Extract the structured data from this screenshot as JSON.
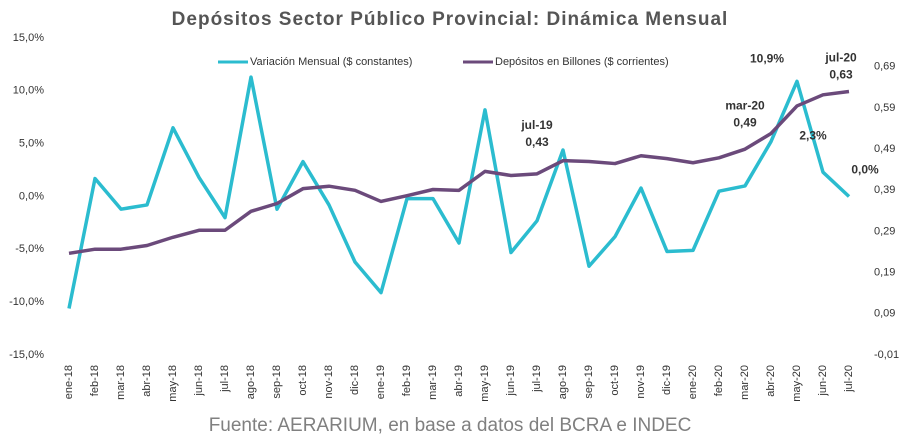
{
  "chart_data": {
    "type": "line",
    "title": "Depósitos Sector Público Provincial:  Dinámica Mensual",
    "source": "Fuente: AERARIUM, en base a datos del BCRA e INDEC",
    "categories": [
      "ene-18",
      "feb-18",
      "mar-18",
      "abr-18",
      "may-18",
      "jun-18",
      "jul-18",
      "ago-18",
      "sep-18",
      "oct-18",
      "nov-18",
      "dic-18",
      "ene-19",
      "feb-19",
      "mar-19",
      "abr-19",
      "may-19",
      "jun-19",
      "jul-19",
      "ago-19",
      "sep-19",
      "oct-19",
      "nov-19",
      "dic-19",
      "ene-20",
      "feb-20",
      "mar-20",
      "abr-20",
      "may-20",
      "jun-20",
      "jul-20"
    ],
    "series": [
      {
        "name": "Variación Mensual ($ constantes)",
        "color": "#2bbccf",
        "values": [
          -10.6,
          1.7,
          -1.2,
          -0.8,
          6.5,
          1.8,
          -2.0,
          11.3,
          -1.2,
          3.3,
          -0.8,
          -6.2,
          -9.1,
          -0.2,
          -0.2,
          -4.4,
          8.2,
          -5.3,
          -2.3,
          4.4,
          -6.6,
          -3.8,
          0.8,
          -5.2,
          -5.1,
          0.5,
          1.0,
          5.2,
          10.9,
          2.3,
          0.0
        ],
        "value_labels": [
          null,
          null,
          null,
          null,
          null,
          null,
          null,
          null,
          null,
          null,
          null,
          null,
          null,
          null,
          null,
          null,
          null,
          null,
          null,
          null,
          null,
          null,
          null,
          null,
          null,
          null,
          null,
          null,
          "10,9%",
          "2,3%",
          "0,0%"
        ]
      },
      {
        "name": "Depósitos en Billones ($ corrientes)",
        "color": "#6b4a7b",
        "axis": "y2",
        "values": [
          0.237,
          0.247,
          0.247,
          0.256,
          0.276,
          0.293,
          0.293,
          0.339,
          0.358,
          0.394,
          0.4,
          0.39,
          0.363,
          0.377,
          0.392,
          0.39,
          0.436,
          0.426,
          0.43,
          0.462,
          0.46,
          0.455,
          0.474,
          0.467,
          0.457,
          0.469,
          0.49,
          0.528,
          0.595,
          0.622,
          0.63
        ],
        "value_labels": [
          null,
          null,
          null,
          null,
          null,
          null,
          null,
          null,
          null,
          null,
          null,
          null,
          null,
          null,
          null,
          null,
          null,
          null,
          "0,43",
          null,
          null,
          null,
          null,
          null,
          null,
          null,
          "0,49",
          null,
          null,
          null,
          "0,63"
        ]
      }
    ],
    "ylim": [
      -15,
      15
    ],
    "yticks": [
      {
        "value": -15,
        "label": "-15,0%"
      },
      {
        "value": -10,
        "label": "-10,0%"
      },
      {
        "value": -5,
        "label": "-5,0%"
      },
      {
        "value": 0,
        "label": "0,0%"
      },
      {
        "value": 5,
        "label": "5,0%"
      },
      {
        "value": 10,
        "label": "10,0%"
      },
      {
        "value": 15,
        "label": "15,0%"
      }
    ],
    "y2lim": [
      -0.01,
      0.76
    ],
    "y2ticks": [
      {
        "value": -0.01,
        "label": "-0,01"
      },
      {
        "value": 0.09,
        "label": "0,09"
      },
      {
        "value": 0.19,
        "label": "0,19"
      },
      {
        "value": 0.29,
        "label": "0,29"
      },
      {
        "value": 0.39,
        "label": "0,39"
      },
      {
        "value": 0.49,
        "label": "0,49"
      },
      {
        "value": 0.59,
        "label": "0,59"
      },
      {
        "value": 0.69,
        "label": "0,69"
      }
    ],
    "grid": false
  }
}
